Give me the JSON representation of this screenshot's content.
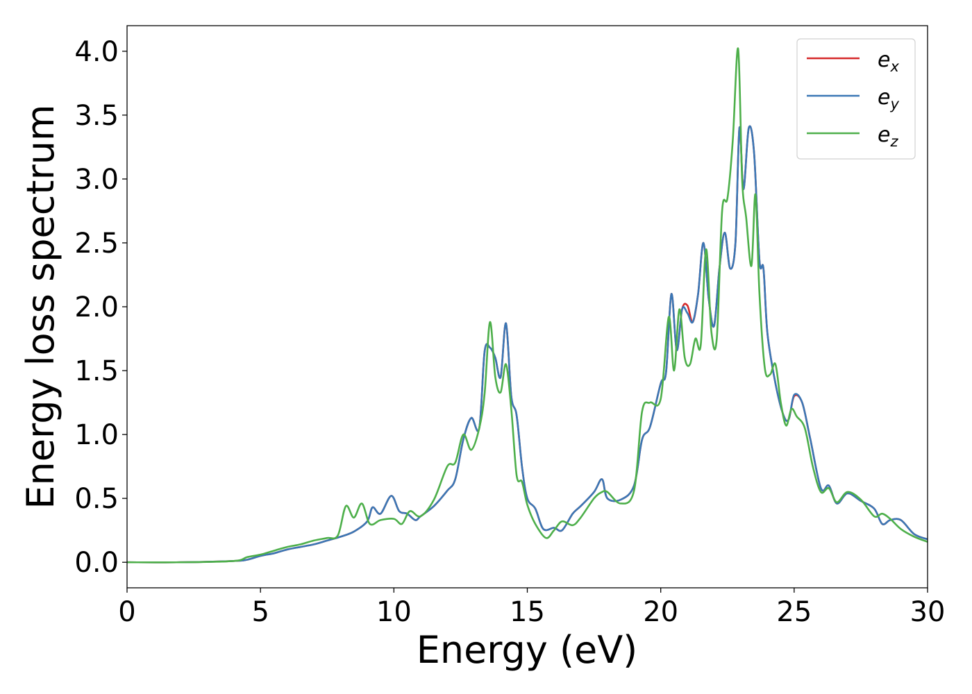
{
  "chart_data": {
    "type": "line",
    "title": "",
    "xlabel": "Energy (eV)",
    "ylabel": "Energy loss spectrum",
    "xlim": [
      0,
      30
    ],
    "ylim": [
      -0.2,
      4.2
    ],
    "xticks": [
      0,
      5,
      10,
      15,
      20,
      25,
      30
    ],
    "xtick_labels": [
      "0",
      "5",
      "10",
      "15",
      "20",
      "25",
      "30"
    ],
    "yticks": [
      0.0,
      0.5,
      1.0,
      1.5,
      2.0,
      2.5,
      3.0,
      3.5,
      4.0
    ],
    "ytick_labels": [
      "0.0",
      "0.5",
      "1.0",
      "1.5",
      "2.0",
      "2.5",
      "3.0",
      "3.5",
      "4.0"
    ],
    "grid": false,
    "legend_position": "top-right",
    "series": [
      {
        "name": "e_x",
        "label_base": "e",
        "label_sub": "x",
        "color": "#d62728",
        "x": [
          0,
          2,
          4,
          4.5,
          5,
          5.5,
          6,
          6.5,
          7,
          7.5,
          8,
          8.5,
          9,
          9.2,
          9.5,
          9.9,
          10.2,
          10.5,
          10.8,
          11,
          11.5,
          12,
          12.3,
          12.6,
          12.9,
          13.2,
          13.4,
          13.6,
          13.8,
          14.0,
          14.2,
          14.4,
          14.6,
          14.8,
          15.0,
          15.3,
          15.6,
          16,
          16.3,
          16.7,
          17,
          17.5,
          17.8,
          18,
          18.5,
          19,
          19.3,
          19.6,
          20,
          20.2,
          20.4,
          20.6,
          20.8,
          21.0,
          21.2,
          21.4,
          21.6,
          21.8,
          22.0,
          22.2,
          22.4,
          22.6,
          22.8,
          22.95,
          23.1,
          23.3,
          23.5,
          23.7,
          23.85,
          24.0,
          24.3,
          24.6,
          24.8,
          25.0,
          25.3,
          25.6,
          26,
          26.3,
          26.6,
          27,
          27.5,
          28,
          28.3,
          28.6,
          29,
          29.5,
          30
        ],
        "y": [
          0,
          0,
          0.01,
          0.02,
          0.05,
          0.07,
          0.1,
          0.12,
          0.14,
          0.17,
          0.2,
          0.24,
          0.32,
          0.43,
          0.38,
          0.52,
          0.4,
          0.38,
          0.33,
          0.36,
          0.44,
          0.56,
          0.65,
          0.96,
          1.13,
          1.05,
          1.65,
          1.68,
          1.6,
          1.45,
          1.87,
          1.3,
          1.15,
          0.75,
          0.5,
          0.42,
          0.26,
          0.27,
          0.25,
          0.38,
          0.44,
          0.55,
          0.65,
          0.5,
          0.49,
          0.6,
          0.96,
          1.06,
          1.4,
          1.49,
          2.1,
          1.66,
          1.98,
          2.01,
          1.88,
          2.1,
          2.5,
          2.06,
          1.85,
          2.3,
          2.58,
          2.3,
          2.5,
          3.4,
          2.92,
          3.4,
          3.2,
          2.36,
          2.3,
          1.79,
          1.4,
          1.15,
          1.12,
          1.3,
          1.25,
          0.97,
          0.58,
          0.6,
          0.46,
          0.54,
          0.48,
          0.42,
          0.3,
          0.33,
          0.33,
          0.22,
          0.18
        ]
      },
      {
        "name": "e_y",
        "label_base": "e",
        "label_sub": "y",
        "color": "#3a77b5",
        "x": [
          0,
          2,
          4,
          4.5,
          5,
          5.5,
          6,
          6.5,
          7,
          7.5,
          8,
          8.5,
          9,
          9.2,
          9.5,
          9.9,
          10.2,
          10.5,
          10.8,
          11,
          11.5,
          12,
          12.3,
          12.6,
          12.9,
          13.2,
          13.4,
          13.6,
          13.8,
          14.0,
          14.2,
          14.4,
          14.6,
          14.8,
          15.0,
          15.3,
          15.6,
          16,
          16.3,
          16.7,
          17,
          17.5,
          17.8,
          18,
          18.5,
          19,
          19.3,
          19.6,
          20,
          20.2,
          20.4,
          20.6,
          20.8,
          21.0,
          21.2,
          21.4,
          21.6,
          21.8,
          22.0,
          22.2,
          22.4,
          22.6,
          22.8,
          22.95,
          23.1,
          23.3,
          23.5,
          23.7,
          23.85,
          24.0,
          24.3,
          24.6,
          24.8,
          25.0,
          25.3,
          25.6,
          26,
          26.3,
          26.6,
          27,
          27.5,
          28,
          28.3,
          28.6,
          29,
          29.5,
          30
        ],
        "y": [
          0,
          0,
          0.01,
          0.02,
          0.05,
          0.07,
          0.1,
          0.12,
          0.14,
          0.17,
          0.2,
          0.24,
          0.32,
          0.43,
          0.38,
          0.52,
          0.4,
          0.38,
          0.33,
          0.36,
          0.44,
          0.56,
          0.65,
          0.96,
          1.13,
          1.05,
          1.65,
          1.68,
          1.6,
          1.45,
          1.87,
          1.3,
          1.15,
          0.75,
          0.5,
          0.42,
          0.26,
          0.27,
          0.25,
          0.38,
          0.44,
          0.55,
          0.65,
          0.5,
          0.49,
          0.6,
          0.96,
          1.06,
          1.4,
          1.49,
          2.1,
          1.66,
          1.98,
          1.95,
          1.88,
          2.1,
          2.5,
          2.06,
          1.85,
          2.3,
          2.58,
          2.3,
          2.5,
          3.4,
          2.92,
          3.4,
          3.2,
          2.36,
          2.3,
          1.79,
          1.4,
          1.15,
          1.12,
          1.31,
          1.25,
          0.97,
          0.58,
          0.6,
          0.46,
          0.54,
          0.48,
          0.42,
          0.3,
          0.33,
          0.33,
          0.22,
          0.18
        ]
      },
      {
        "name": "e_z",
        "label_base": "e",
        "label_sub": "z",
        "color": "#4daf4a",
        "x": [
          0,
          2,
          4,
          4.5,
          5,
          5.5,
          6,
          6.5,
          7,
          7.5,
          7.9,
          8.2,
          8.5,
          8.8,
          9.1,
          9.5,
          10,
          10.3,
          10.6,
          11,
          11.5,
          12,
          12.3,
          12.6,
          12.9,
          13.2,
          13.4,
          13.6,
          13.8,
          14.0,
          14.2,
          14.4,
          14.6,
          14.8,
          15.0,
          15.3,
          15.7,
          16,
          16.3,
          16.7,
          17,
          17.5,
          17.8,
          18,
          18.5,
          19,
          19.3,
          19.6,
          20,
          20.3,
          20.5,
          20.7,
          20.9,
          21.1,
          21.3,
          21.5,
          21.7,
          21.9,
          22.1,
          22.3,
          22.5,
          22.7,
          22.9,
          23.05,
          23.2,
          23.4,
          23.55,
          23.7,
          23.9,
          24.1,
          24.3,
          24.5,
          24.7,
          24.9,
          25.1,
          25.4,
          25.7,
          26,
          26.3,
          26.6,
          27,
          27.5,
          28,
          28.3,
          28.6,
          29,
          29.5,
          30
        ],
        "y": [
          0,
          0,
          0.01,
          0.04,
          0.06,
          0.09,
          0.12,
          0.14,
          0.17,
          0.19,
          0.21,
          0.44,
          0.35,
          0.46,
          0.3,
          0.33,
          0.34,
          0.3,
          0.4,
          0.36,
          0.49,
          0.75,
          0.78,
          1.0,
          0.88,
          1.05,
          1.32,
          1.88,
          1.45,
          1.33,
          1.55,
          1.2,
          0.68,
          0.63,
          0.45,
          0.3,
          0.19,
          0.25,
          0.32,
          0.29,
          0.35,
          0.5,
          0.55,
          0.55,
          0.46,
          0.56,
          1.18,
          1.25,
          1.28,
          1.92,
          1.5,
          1.98,
          1.6,
          1.55,
          1.75,
          1.7,
          2.45,
          1.8,
          1.75,
          2.75,
          2.85,
          3.3,
          4.02,
          3.0,
          2.7,
          2.32,
          2.88,
          2.1,
          1.52,
          1.47,
          1.55,
          1.25,
          1.07,
          1.2,
          1.14,
          1.05,
          0.75,
          0.55,
          0.58,
          0.47,
          0.55,
          0.49,
          0.36,
          0.38,
          0.34,
          0.26,
          0.2,
          0.16
        ]
      }
    ]
  }
}
